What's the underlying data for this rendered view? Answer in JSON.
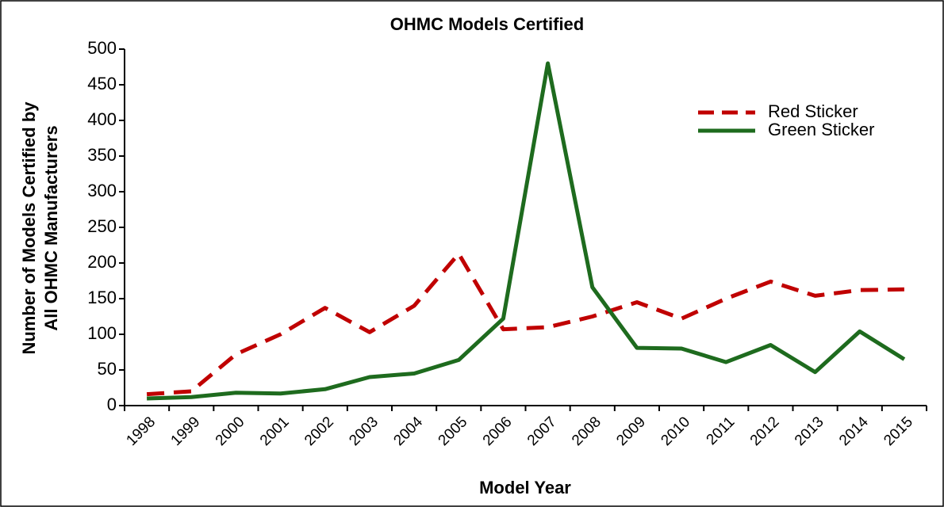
{
  "chart_data": {
    "type": "line",
    "title": "OHMC Models Certified",
    "x_label": "Model Year",
    "y_label": [
      "Number of Models Certified by",
      "All OHMC Manufacturers"
    ],
    "categories": [
      "1998",
      "1999",
      "2000",
      "2001",
      "2002",
      "2003",
      "2004",
      "2005",
      "2006",
      "2007",
      "2008",
      "2009",
      "2010",
      "2011",
      "2012",
      "2013",
      "2014",
      "2015"
    ],
    "series": [
      {
        "name": "Red Sticker",
        "color": "#c00000",
        "dash": true,
        "values": [
          16,
          20,
          72,
          100,
          137,
          103,
          140,
          213,
          107,
          110,
          125,
          145,
          122,
          150,
          174,
          154,
          162,
          163
        ]
      },
      {
        "name": "Green Sticker",
        "color": "#1e6b1e",
        "dash": false,
        "values": [
          10,
          12,
          18,
          17,
          23,
          40,
          45,
          64,
          122,
          480,
          166,
          81,
          80,
          61,
          85,
          47,
          104,
          65
        ]
      }
    ],
    "ylim": [
      0,
      500
    ],
    "yticks": [
      0,
      50,
      100,
      150,
      200,
      250,
      300,
      350,
      400,
      450,
      500
    ],
    "legend": "upper right",
    "grid": false
  }
}
